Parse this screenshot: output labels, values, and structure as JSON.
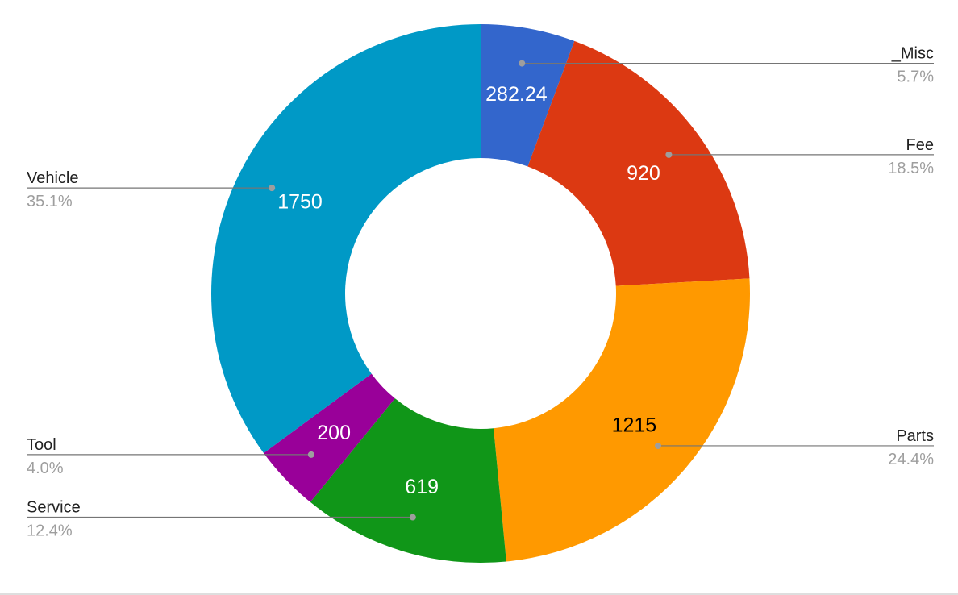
{
  "chart_data": {
    "type": "pie",
    "donut": true,
    "slices": [
      {
        "name": "_Misc",
        "value": 282.24,
        "label": "282.24",
        "percent": "5.7%",
        "color": "#3366cc",
        "label_color": "#ffffff",
        "legend_side": "right"
      },
      {
        "name": "Fee",
        "value": 920,
        "label": "920",
        "percent": "18.5%",
        "color": "#dc3912",
        "label_color": "#ffffff",
        "legend_side": "right"
      },
      {
        "name": "Parts",
        "value": 1215,
        "label": "1215",
        "percent": "24.4%",
        "color": "#ff9900",
        "label_color": "#000000",
        "legend_side": "right"
      },
      {
        "name": "Service",
        "value": 619,
        "label": "619",
        "percent": "12.4%",
        "color": "#109618",
        "label_color": "#ffffff",
        "legend_side": "left"
      },
      {
        "name": "Tool",
        "value": 200,
        "label": "200",
        "percent": "4.0%",
        "color": "#990099",
        "label_color": "#ffffff",
        "legend_side": "left"
      },
      {
        "name": "Vehicle",
        "value": 1750,
        "label": "1750",
        "percent": "35.1%",
        "color": "#0099c6",
        "label_color": "#ffffff",
        "legend_side": "left"
      }
    ],
    "legend_placement": "labels on both sides with leader lines"
  }
}
